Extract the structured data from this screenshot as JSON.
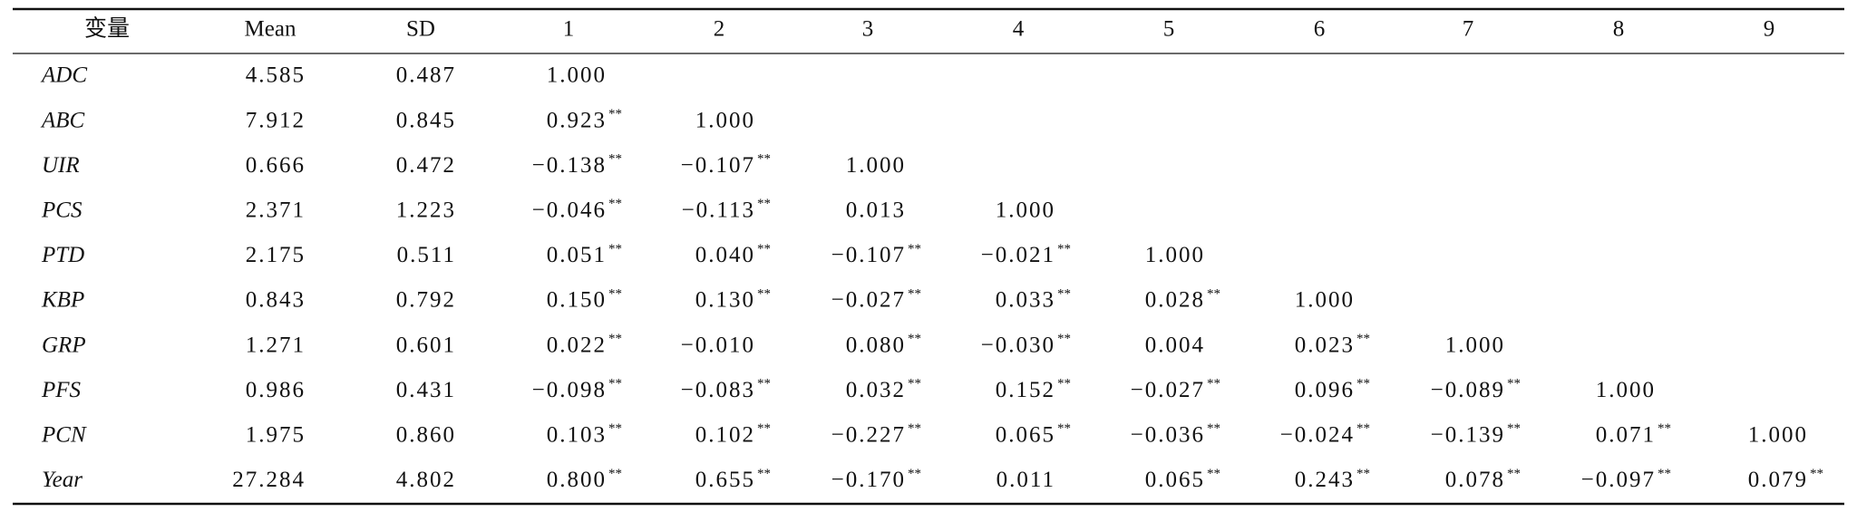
{
  "table": {
    "header": [
      "变量",
      "Mean",
      "SD",
      "1",
      "2",
      "3",
      "4",
      "5",
      "6",
      "7",
      "8",
      "9"
    ],
    "rows": [
      {
        "variable": "ADC",
        "mean": "4.585",
        "sd": "0.487",
        "corr": [
          {
            "r": "1.000"
          }
        ]
      },
      {
        "variable": "ABC",
        "mean": "7.912",
        "sd": "0.845",
        "corr": [
          {
            "r": "0.923",
            "sig": "**"
          },
          {
            "r": "1.000"
          }
        ]
      },
      {
        "variable": "UIR",
        "mean": "0.666",
        "sd": "0.472",
        "corr": [
          {
            "r": "−0.138",
            "sig": "**"
          },
          {
            "r": "−0.107",
            "sig": "**"
          },
          {
            "r": "1.000"
          }
        ]
      },
      {
        "variable": "PCS",
        "mean": "2.371",
        "sd": "1.223",
        "corr": [
          {
            "r": "−0.046",
            "sig": "**"
          },
          {
            "r": "−0.113",
            "sig": "**"
          },
          {
            "r": "0.013"
          },
          {
            "r": "1.000"
          }
        ]
      },
      {
        "variable": "PTD",
        "mean": "2.175",
        "sd": "0.511",
        "corr": [
          {
            "r": "0.051",
            "sig": "**"
          },
          {
            "r": "0.040",
            "sig": "**"
          },
          {
            "r": "−0.107",
            "sig": "**"
          },
          {
            "r": "−0.021",
            "sig": "**"
          },
          {
            "r": "1.000"
          }
        ]
      },
      {
        "variable": "KBP",
        "mean": "0.843",
        "sd": "0.792",
        "corr": [
          {
            "r": "0.150",
            "sig": "**"
          },
          {
            "r": "0.130",
            "sig": "**"
          },
          {
            "r": "−0.027",
            "sig": "**"
          },
          {
            "r": "0.033",
            "sig": "**"
          },
          {
            "r": "0.028",
            "sig": "**"
          },
          {
            "r": "1.000"
          }
        ]
      },
      {
        "variable": "GRP",
        "mean": "1.271",
        "sd": "0.601",
        "corr": [
          {
            "r": "0.022",
            "sig": "**"
          },
          {
            "r": "−0.010"
          },
          {
            "r": "0.080",
            "sig": "**"
          },
          {
            "r": "−0.030",
            "sig": "**"
          },
          {
            "r": "0.004"
          },
          {
            "r": "0.023",
            "sig": "**"
          },
          {
            "r": "1.000"
          }
        ]
      },
      {
        "variable": "PFS",
        "mean": "0.986",
        "sd": "0.431",
        "corr": [
          {
            "r": "−0.098",
            "sig": "**"
          },
          {
            "r": "−0.083",
            "sig": "**"
          },
          {
            "r": "0.032",
            "sig": "**"
          },
          {
            "r": "0.152",
            "sig": "**"
          },
          {
            "r": "−0.027",
            "sig": "**"
          },
          {
            "r": "0.096",
            "sig": "**"
          },
          {
            "r": "−0.089",
            "sig": "**"
          },
          {
            "r": "1.000"
          }
        ]
      },
      {
        "variable": "PCN",
        "mean": "1.975",
        "sd": "0.860",
        "corr": [
          {
            "r": "0.103",
            "sig": "**"
          },
          {
            "r": "0.102",
            "sig": "**"
          },
          {
            "r": "−0.227",
            "sig": "**"
          },
          {
            "r": "0.065",
            "sig": "**"
          },
          {
            "r": "−0.036",
            "sig": "**"
          },
          {
            "r": "−0.024",
            "sig": "**"
          },
          {
            "r": "−0.139",
            "sig": "**"
          },
          {
            "r": "0.071",
            "sig": "**"
          },
          {
            "r": "1.000"
          }
        ]
      },
      {
        "variable": "Year",
        "mean": "27.284",
        "sd": "4.802",
        "corr": [
          {
            "r": "0.800",
            "sig": "**"
          },
          {
            "r": "0.655",
            "sig": "**"
          },
          {
            "r": "−0.170",
            "sig": "**"
          },
          {
            "r": "0.011"
          },
          {
            "r": "0.065",
            "sig": "**"
          },
          {
            "r": "0.243",
            "sig": "**"
          },
          {
            "r": "0.078",
            "sig": "**"
          },
          {
            "r": "−0.097",
            "sig": "**"
          },
          {
            "r": "0.079",
            "sig": "**"
          }
        ]
      }
    ]
  }
}
